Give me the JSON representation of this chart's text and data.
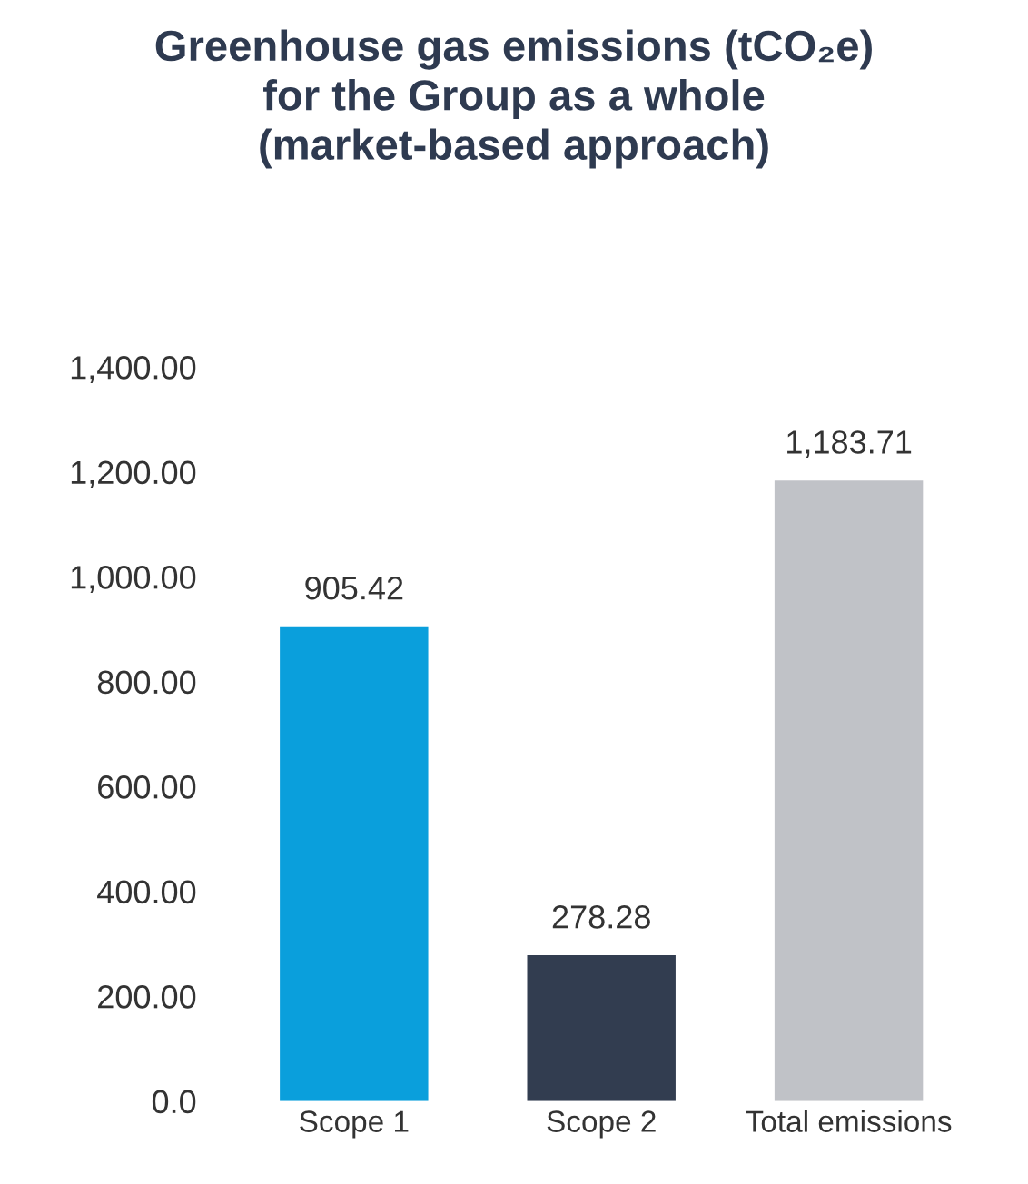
{
  "chart_data": {
    "type": "bar",
    "title": "Greenhouse gas emissions (tCO₂e)\nfor the Group as a whole\n(market-based approach)",
    "categories": [
      "Scope 1",
      "Scope 2",
      "Total emissions"
    ],
    "values": [
      905.42,
      278.28,
      1183.71
    ],
    "colors": [
      "#0a9fdc",
      "#323d50",
      "#c0c2c7"
    ],
    "value_labels": [
      "905.42",
      "278.28",
      "1,183.71"
    ],
    "ylim": [
      0,
      1400
    ],
    "yticks": [
      {
        "value": 0,
        "label": "0.0"
      },
      {
        "value": 200,
        "label": "200.00"
      },
      {
        "value": 400,
        "label": "400.00"
      },
      {
        "value": 600,
        "label": "600.00"
      },
      {
        "value": 800,
        "label": "800.00"
      },
      {
        "value": 1000,
        "label": "1,000.00"
      },
      {
        "value": 1200,
        "label": "1,200.00"
      },
      {
        "value": 1400,
        "label": "1,400.00"
      }
    ],
    "grid": false,
    "legend": false
  }
}
